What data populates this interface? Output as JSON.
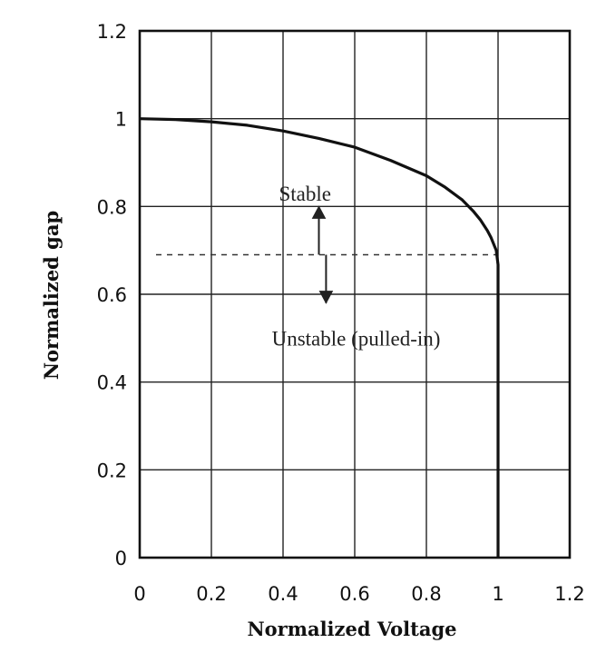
{
  "chart_data": {
    "type": "line",
    "title": "",
    "xlabel": "Normalized Voltage",
    "ylabel": "Normalized gap",
    "xlim": [
      0,
      1.2
    ],
    "ylim": [
      0,
      1.2
    ],
    "grid": true,
    "x_ticks": [
      "0",
      "0.2",
      "0.4",
      "0.6",
      "0.8",
      "1",
      "1.2"
    ],
    "y_ticks": [
      "0",
      "0.2",
      "0.4",
      "0.6",
      "0.8",
      "1",
      "1.2"
    ],
    "series": [
      {
        "x": [
          0,
          0.1,
          0.2,
          0.3,
          0.4,
          0.5,
          0.6,
          0.7,
          0.8,
          0.85,
          0.9,
          0.93,
          0.95,
          0.97,
          0.98,
          0.99,
          0.995,
          1.0
        ],
        "y": [
          1.0,
          0.998,
          0.993,
          0.985,
          0.972,
          0.955,
          0.935,
          0.905,
          0.87,
          0.845,
          0.815,
          0.79,
          0.77,
          0.745,
          0.73,
          0.71,
          0.7,
          0.667
        ]
      }
    ],
    "threshold": {
      "y": 0.69,
      "style": "dashed"
    },
    "annotations": [
      {
        "text": "Stable",
        "x": 0.5,
        "y": 0.83
      },
      {
        "text": "Unstable (pulled-in)",
        "x": 0.48,
        "y": 0.5
      }
    ],
    "arrows": [
      {
        "direction": "up",
        "x": 0.5,
        "y_from": 0.69,
        "y_to": 0.8
      },
      {
        "direction": "down",
        "x": 0.52,
        "y_from": 0.69,
        "y_to": 0.58
      }
    ]
  }
}
